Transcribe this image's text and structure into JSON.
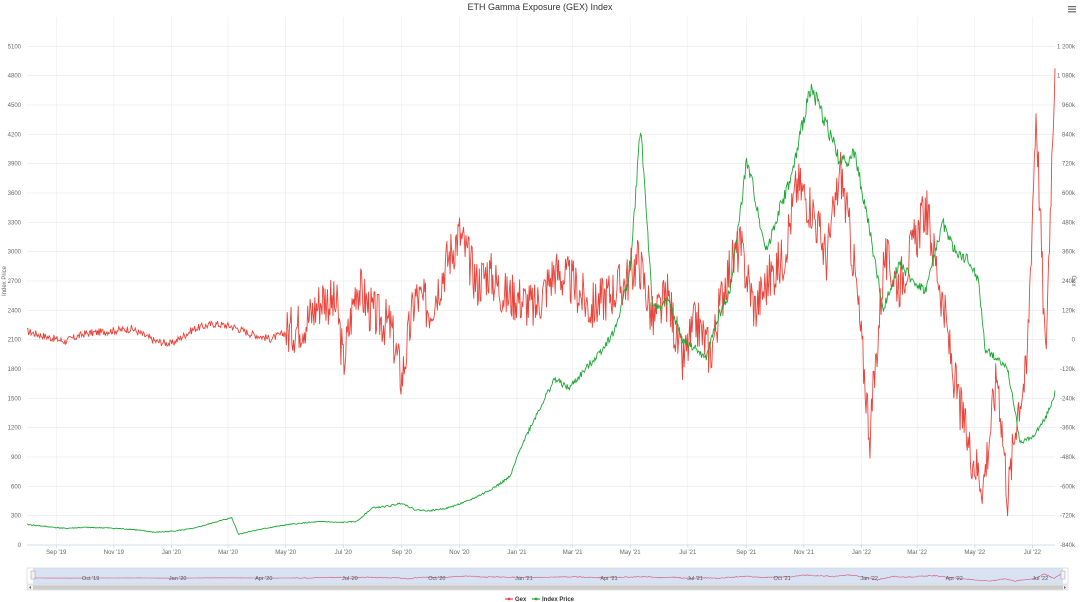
{
  "chart_data": {
    "type": "line",
    "title": "ETH Gamma Exposure (GEX) Index",
    "y_left": {
      "label": "Index Price",
      "range": [
        0,
        5400
      ],
      "ticks": [
        "0",
        "300",
        "600",
        "900",
        "1200",
        "1500",
        "1800",
        "2100",
        "2400",
        "2700",
        "3000",
        "3300",
        "3600",
        "3900",
        "4200",
        "4500",
        "4800",
        "5100"
      ]
    },
    "y_right": {
      "label": "Gex",
      "range": [
        -840000,
        1260000
      ],
      "ticks": [
        "-840k",
        "-720k",
        "-600k",
        "-480k",
        "-360k",
        "-240k",
        "-120k",
        "0",
        "120k",
        "240k",
        "360k",
        "480k",
        "600k",
        "720k",
        "840k",
        "960k",
        "1 080k",
        "1 200k"
      ]
    },
    "x_range": [
      "2019-08-01",
      "2022-07-25"
    ],
    "x_ticks": [
      {
        "label": "Sep '19",
        "date": "2019-09-01"
      },
      {
        "label": "Nov '19",
        "date": "2019-11-01"
      },
      {
        "label": "Jan '20",
        "date": "2020-01-01"
      },
      {
        "label": "Mar '20",
        "date": "2020-03-01"
      },
      {
        "label": "May '20",
        "date": "2020-05-01"
      },
      {
        "label": "Jul '20",
        "date": "2020-07-01"
      },
      {
        "label": "Sep '20",
        "date": "2020-09-01"
      },
      {
        "label": "Nov '20",
        "date": "2020-11-01"
      },
      {
        "label": "Jan '21",
        "date": "2021-01-01"
      },
      {
        "label": "Mar '21",
        "date": "2021-03-01"
      },
      {
        "label": "May '21",
        "date": "2021-05-01"
      },
      {
        "label": "Jul '21",
        "date": "2021-07-01"
      },
      {
        "label": "Sep '21",
        "date": "2021-09-01"
      },
      {
        "label": "Nov '21",
        "date": "2021-11-01"
      },
      {
        "label": "Jan '22",
        "date": "2022-01-01"
      },
      {
        "label": "Mar '22",
        "date": "2022-03-01"
      },
      {
        "label": "May '22",
        "date": "2022-05-01"
      },
      {
        "label": "Jul '22",
        "date": "2022-07-01"
      }
    ],
    "navigator_ticks": [
      {
        "label": "Oct '19",
        "date": "2019-10-01"
      },
      {
        "label": "Jan '20",
        "date": "2020-01-01"
      },
      {
        "label": "Apr '20",
        "date": "2020-04-01"
      },
      {
        "label": "Jul '20",
        "date": "2020-07-01"
      },
      {
        "label": "Oct '20",
        "date": "2020-10-01"
      },
      {
        "label": "Jan '21",
        "date": "2021-01-01"
      },
      {
        "label": "Apr '21",
        "date": "2021-04-01"
      },
      {
        "label": "Jul '21",
        "date": "2021-07-01"
      },
      {
        "label": "Oct '21",
        "date": "2021-10-01"
      },
      {
        "label": "Jan '22",
        "date": "2022-01-01"
      },
      {
        "label": "Apr '22",
        "date": "2022-04-01"
      },
      {
        "label": "Jul '22",
        "date": "2022-07-01"
      }
    ],
    "grid": true,
    "legend_position": "bottom-center",
    "series": [
      {
        "name": "Gex",
        "axis": "right",
        "color": "#e8453c",
        "x": [
          "2019-08-01",
          "2019-08-20",
          "2019-09-10",
          "2019-10-01",
          "2019-10-25",
          "2019-11-20",
          "2019-12-15",
          "2020-01-01",
          "2020-01-25",
          "2020-02-15",
          "2020-03-05",
          "2020-03-25",
          "2020-04-15",
          "2020-05-05",
          "2020-05-25",
          "2020-06-10",
          "2020-06-25",
          "2020-07-01",
          "2020-07-15",
          "2020-08-01",
          "2020-08-20",
          "2020-09-01",
          "2020-09-15",
          "2020-10-01",
          "2020-10-20",
          "2020-11-01",
          "2020-11-20",
          "2020-12-01",
          "2020-12-20",
          "2021-01-01",
          "2021-01-20",
          "2021-02-10",
          "2021-03-01",
          "2021-03-20",
          "2021-04-05",
          "2021-04-25",
          "2021-05-10",
          "2021-05-25",
          "2021-06-10",
          "2021-06-25",
          "2021-07-10",
          "2021-07-25",
          "2021-08-10",
          "2021-08-25",
          "2021-09-10",
          "2021-09-25",
          "2021-10-10",
          "2021-10-25",
          "2021-11-10",
          "2021-11-25",
          "2021-12-10",
          "2021-12-25",
          "2022-01-10",
          "2022-01-25",
          "2022-02-10",
          "2022-02-25",
          "2022-03-10",
          "2022-03-25",
          "2022-04-10",
          "2022-04-25",
          "2022-05-10",
          "2022-05-25",
          "2022-06-05",
          "2022-06-15",
          "2022-06-25",
          "2022-07-05",
          "2022-07-15",
          "2022-07-25"
        ],
        "y": [
          10000,
          -10000,
          -30000,
          0,
          10000,
          20000,
          -30000,
          -40000,
          20000,
          40000,
          30000,
          0,
          -20000,
          10000,
          60000,
          150000,
          100000,
          -120000,
          200000,
          80000,
          30000,
          -180000,
          150000,
          100000,
          300000,
          400000,
          200000,
          250000,
          150000,
          150000,
          100000,
          250000,
          200000,
          100000,
          150000,
          200000,
          300000,
          50000,
          150000,
          -120000,
          50000,
          -80000,
          220000,
          350000,
          100000,
          220000,
          300000,
          600000,
          500000,
          300000,
          650000,
          250000,
          -400000,
          300000,
          200000,
          350000,
          500000,
          200000,
          -200000,
          -450000,
          -600000,
          -150000,
          -650000,
          -300000,
          -150000,
          900000,
          -100000,
          1100000
        ]
      },
      {
        "name": "Index Price",
        "axis": "left",
        "color": "#1fa835",
        "x": [
          "2019-08-01",
          "2019-08-20",
          "2019-09-10",
          "2019-10-01",
          "2019-10-25",
          "2019-11-20",
          "2019-12-15",
          "2020-01-01",
          "2020-01-25",
          "2020-02-15",
          "2020-03-05",
          "2020-03-12",
          "2020-03-25",
          "2020-04-15",
          "2020-05-05",
          "2020-05-25",
          "2020-06-10",
          "2020-06-25",
          "2020-07-15",
          "2020-08-01",
          "2020-08-20",
          "2020-09-01",
          "2020-09-15",
          "2020-10-01",
          "2020-10-20",
          "2020-11-10",
          "2020-11-25",
          "2020-12-10",
          "2020-12-25",
          "2021-01-05",
          "2021-01-20",
          "2021-02-10",
          "2021-02-25",
          "2021-03-15",
          "2021-04-01",
          "2021-04-15",
          "2021-05-01",
          "2021-05-12",
          "2021-05-25",
          "2021-06-10",
          "2021-06-25",
          "2021-07-10",
          "2021-07-20",
          "2021-08-01",
          "2021-08-15",
          "2021-09-01",
          "2021-09-05",
          "2021-09-22",
          "2021-10-05",
          "2021-10-20",
          "2021-11-08",
          "2021-11-25",
          "2021-12-10",
          "2021-12-25",
          "2022-01-10",
          "2022-01-24",
          "2022-02-10",
          "2022-02-24",
          "2022-03-10",
          "2022-03-28",
          "2022-04-10",
          "2022-04-25",
          "2022-05-05",
          "2022-05-12",
          "2022-05-25",
          "2022-06-05",
          "2022-06-18",
          "2022-07-01",
          "2022-07-15",
          "2022-07-25"
        ],
        "y": [
          210,
          190,
          170,
          180,
          175,
          160,
          130,
          140,
          170,
          230,
          280,
          110,
          140,
          180,
          210,
          230,
          240,
          230,
          240,
          380,
          400,
          430,
          360,
          350,
          380,
          450,
          520,
          600,
          700,
          1000,
          1300,
          1700,
          1600,
          1800,
          2000,
          2200,
          2800,
          4300,
          2400,
          2500,
          2100,
          2000,
          1900,
          2300,
          2600,
          3900,
          3800,
          3000,
          3400,
          3800,
          4700,
          4300,
          3900,
          4000,
          3200,
          2400,
          2900,
          2700,
          2600,
          3300,
          3000,
          2900,
          2700,
          2000,
          1900,
          1800,
          1050,
          1100,
          1300,
          1550
        ]
      }
    ]
  }
}
